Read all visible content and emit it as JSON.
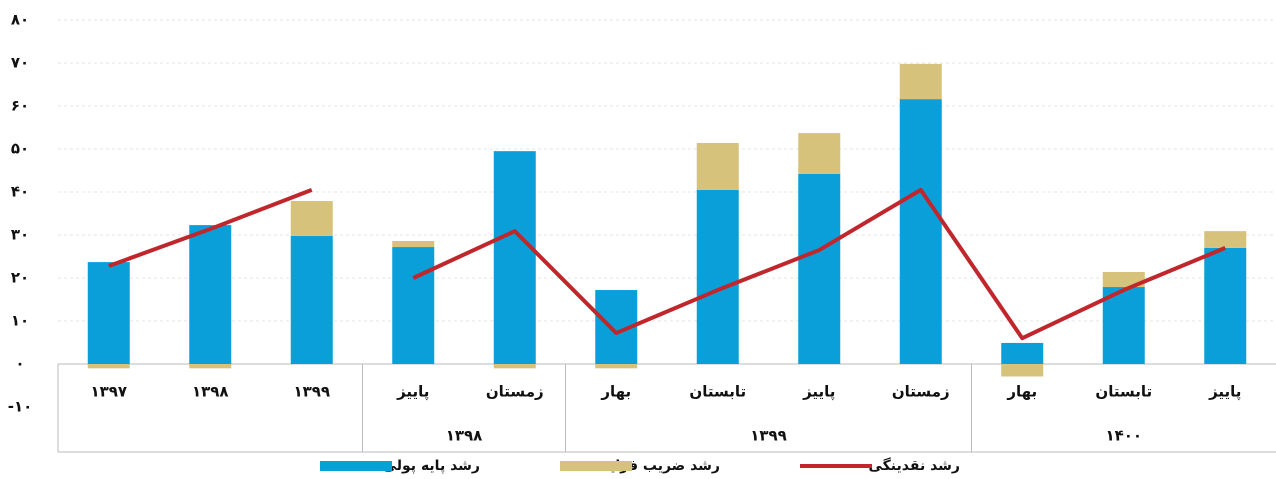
{
  "chart_data": {
    "type": "bar",
    "categories": [
      "۱۳۹۷",
      "۱۳۹۸",
      "۱۳۹۹",
      "پاییز",
      "زمستان",
      "بهار",
      "تابستان",
      "پاییز",
      "زمستان",
      "بهار",
      "تابستان",
      "پاییز"
    ],
    "groups": [
      {
        "count": 3
      },
      {
        "label": "۱۳۹۸",
        "count": 2
      },
      {
        "label": "۱۳۹۹",
        "count": 4
      },
      {
        "label": "۱۴۰۰",
        "count": 3
      }
    ],
    "series": [
      {
        "name": "رشد پایه پولی",
        "type": "bar",
        "color": "#0a9fd8",
        "values": [
          23.7,
          32.3,
          29.8,
          27.2,
          49.5,
          17.2,
          40.5,
          44.2,
          61.6,
          4.9,
          17.9,
          27
        ]
      },
      {
        "name": "رشد ضریب فزاینده",
        "type": "bar",
        "color": "#d6c27a",
        "values": [
          -1,
          -1,
          8.1,
          1.4,
          -1,
          -1,
          10.9,
          9.5,
          8.2,
          -2.9,
          3.5,
          3.9
        ]
      },
      {
        "name": "رشد نقدینگی",
        "type": "line",
        "color": "#c0272d",
        "values": [
          22.8,
          31.4,
          40.5,
          20,
          30.9,
          7.2,
          17.2,
          26.5,
          40.5,
          6,
          17.2,
          27
        ]
      }
    ],
    "ylim": [
      -10,
      80
    ],
    "yticks": [
      {
        "value": -10,
        "label": "-۱۰"
      },
      {
        "value": 0,
        "label": "۰"
      },
      {
        "value": 10,
        "label": "۱۰"
      },
      {
        "value": 20,
        "label": "۲۰"
      },
      {
        "value": 30,
        "label": "۳۰"
      },
      {
        "value": 40,
        "label": "۴۰"
      },
      {
        "value": 50,
        "label": "۵۰"
      },
      {
        "value": 60,
        "label": "۶۰"
      },
      {
        "value": 70,
        "label": "۷۰"
      },
      {
        "value": 80,
        "label": "۸۰"
      }
    ],
    "grid": true
  }
}
